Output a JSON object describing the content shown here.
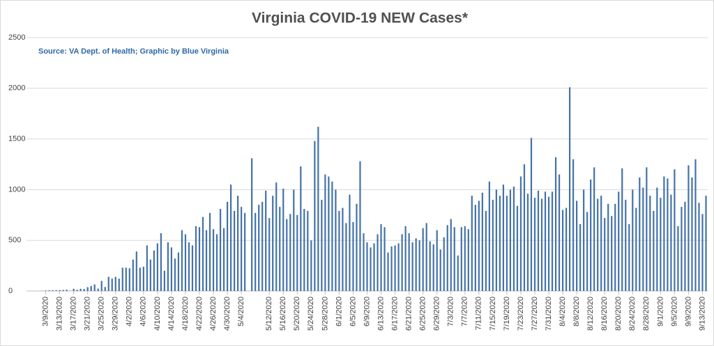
{
  "chart_data": {
    "type": "bar",
    "title": "Virginia COVID-19 NEW Cases*",
    "annotation": "Source: VA Dept. of Health; Graphic by Blue Virginia",
    "color": "#4472a8",
    "grid": true,
    "ylim": [
      0,
      2500
    ],
    "yticks": [
      0,
      500,
      1000,
      1500,
      2000,
      2500
    ],
    "categories": [
      null,
      null,
      null,
      null,
      null,
      "3/9/2020",
      null,
      null,
      null,
      "3/13/2020",
      null,
      null,
      null,
      "3/17/2020",
      null,
      null,
      null,
      "3/21/2020",
      null,
      null,
      null,
      "3/25/2020",
      null,
      null,
      null,
      "3/29/2020",
      null,
      null,
      null,
      "4/2/2020",
      null,
      null,
      null,
      "4/6/2020",
      null,
      null,
      null,
      "4/10/2020",
      null,
      null,
      null,
      "4/14/2020",
      null,
      null,
      null,
      "4/18/2020",
      null,
      null,
      null,
      "4/22/2020",
      null,
      null,
      null,
      "4/26/2020",
      null,
      null,
      null,
      "4/30/2020",
      null,
      null,
      null,
      "5/4/2020",
      null,
      null,
      null,
      null,
      null,
      null,
      null,
      "5/12/2020",
      null,
      null,
      null,
      "5/16/2020",
      null,
      null,
      null,
      "5/20/2020",
      null,
      null,
      null,
      "5/24/2020",
      null,
      null,
      null,
      "5/28/2020",
      null,
      null,
      null,
      "6/1/2020",
      null,
      null,
      null,
      "6/5/2020",
      null,
      null,
      null,
      "6/9/2020",
      null,
      null,
      null,
      "6/13/2020",
      null,
      null,
      null,
      "6/17/2020",
      null,
      null,
      null,
      "6/21/2020",
      null,
      null,
      null,
      "6/25/2020",
      null,
      null,
      null,
      "6/29/2020",
      null,
      null,
      null,
      "7/3/2020",
      null,
      null,
      null,
      "7/7/2020",
      null,
      null,
      null,
      "7/11/2020",
      null,
      null,
      null,
      "7/15/2020",
      null,
      null,
      null,
      "7/19/2020",
      null,
      null,
      null,
      "7/23/2020",
      null,
      null,
      null,
      "7/27/2020",
      null,
      null,
      null,
      "7/31/2020",
      null,
      null,
      null,
      "8/4/2020",
      null,
      null,
      null,
      "8/8/2020",
      null,
      null,
      null,
      "8/12/2020",
      null,
      null,
      null,
      "8/16/2020",
      null,
      null,
      null,
      "8/20/2020",
      null,
      null,
      null,
      "8/24/2020",
      null,
      null,
      null,
      "8/28/2020",
      null,
      null,
      null,
      "9/1/2020",
      null,
      null,
      null,
      "9/5/2020",
      null,
      null,
      null,
      "9/9/2020",
      null,
      null,
      null,
      "9/13/2020",
      null
    ],
    "values": [
      0,
      0,
      0,
      0,
      2,
      5,
      7,
      8,
      9,
      9,
      11,
      13,
      3,
      22,
      12,
      22,
      20,
      38,
      50,
      65,
      24,
      100,
      40,
      140,
      122,
      140,
      122,
      230,
      230,
      225,
      310,
      390,
      230,
      240,
      450,
      310,
      400,
      470,
      570,
      200,
      480,
      430,
      320,
      380,
      600,
      560,
      480,
      450,
      640,
      630,
      730,
      600,
      770,
      610,
      560,
      810,
      620,
      880,
      1050,
      790,
      940,
      830,
      770,
      null,
      1310,
      770,
      850,
      880,
      990,
      720,
      940,
      1070,
      830,
      1010,
      710,
      760,
      1000,
      750,
      1230,
      810,
      790,
      500,
      1480,
      1620,
      900,
      1150,
      1130,
      1080,
      1000,
      790,
      820,
      670,
      950,
      680,
      860,
      1280,
      570,
      480,
      430,
      470,
      560,
      660,
      630,
      380,
      440,
      450,
      470,
      560,
      640,
      570,
      480,
      520,
      500,
      620,
      670,
      490,
      460,
      600,
      410,
      530,
      650,
      710,
      630,
      350,
      630,
      640,
      610,
      940,
      850,
      890,
      970,
      790,
      1080,
      900,
      1000,
      940,
      1050,
      940,
      1000,
      1030,
      840,
      1130,
      1250,
      960,
      1510,
      920,
      990,
      910,
      980,
      930,
      980,
      1320,
      1150,
      800,
      820,
      2010,
      1300,
      890,
      660,
      1000,
      780,
      1100,
      1220,
      910,
      940,
      720,
      860,
      740,
      860,
      980,
      1210,
      900,
      660,
      1000,
      820,
      1120,
      1020,
      1220,
      940,
      790,
      1020,
      920,
      1130,
      1110,
      950,
      1200,
      640,
      830,
      880,
      1240,
      1120,
      1300,
      870,
      760,
      940
    ]
  }
}
